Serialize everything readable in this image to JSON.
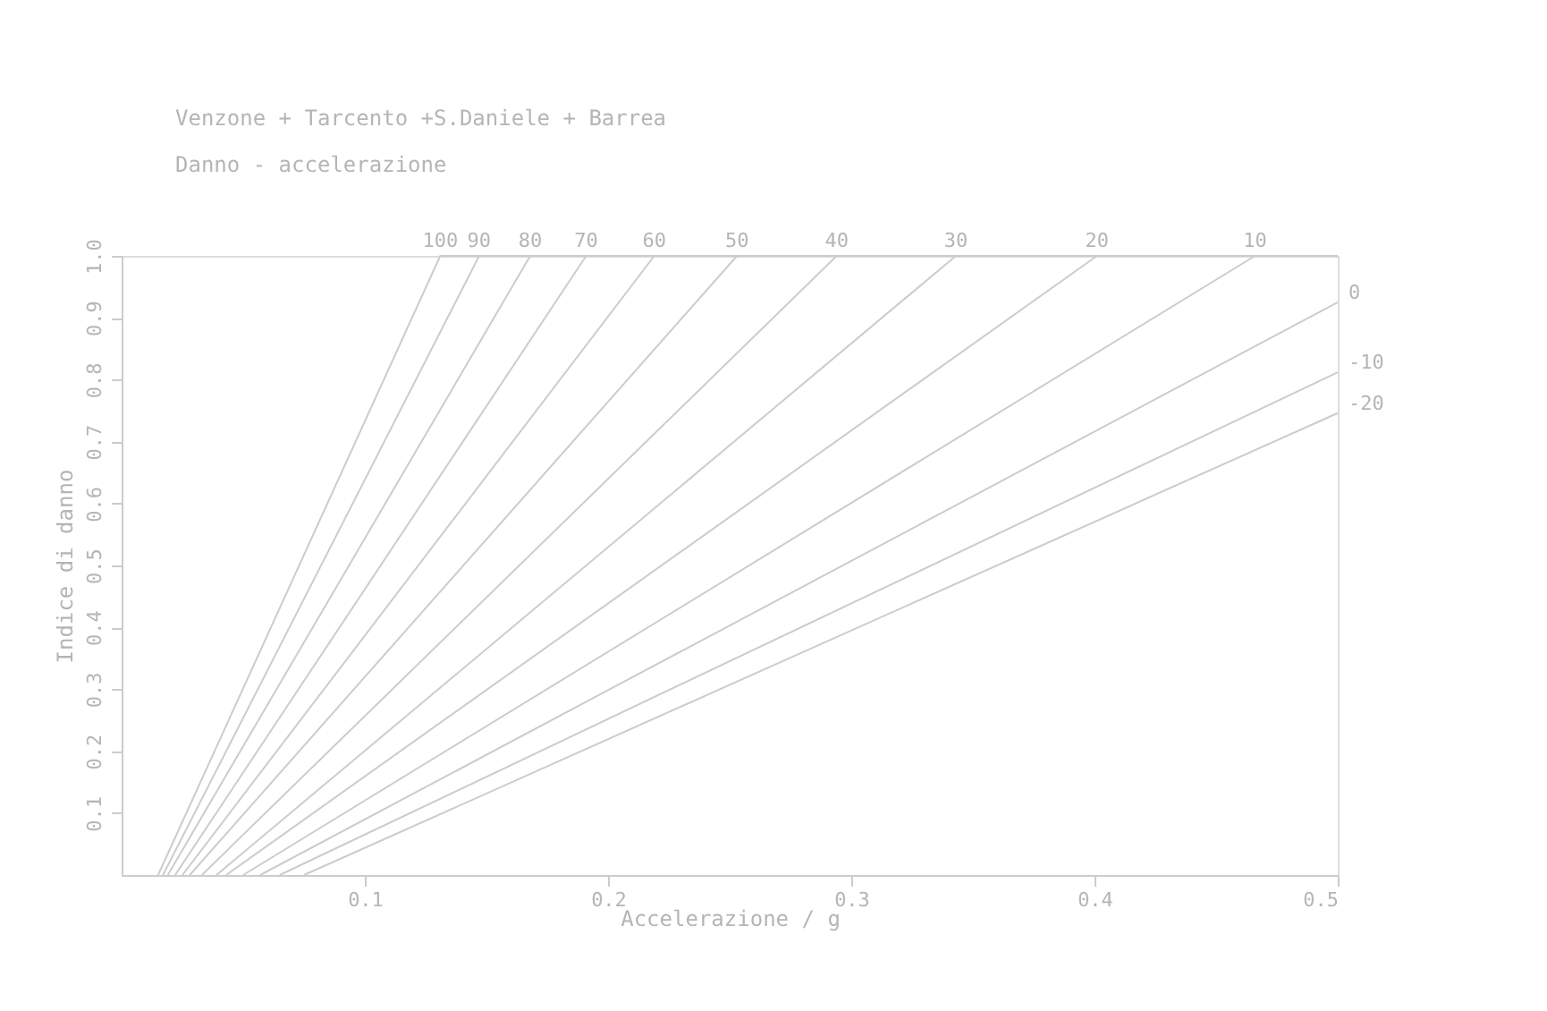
{
  "chart_data": {
    "type": "line",
    "title": "Venzone + Tarcento +S.Daniele + Barrea",
    "subtitle": "Danno - accelerazione",
    "xlabel": "Accelerazione / g",
    "ylabel": "Indice di danno",
    "xlim": [
      0,
      0.5
    ],
    "ylim": [
      0,
      1
    ],
    "xticks": [
      0.1,
      0.2,
      0.3,
      0.4,
      0.5
    ],
    "yticks": [
      0.1,
      0.2,
      0.3,
      0.4,
      0.5,
      0.6,
      0.7,
      0.8,
      0.9,
      {
        "value": 1,
        "label": "1.0"
      }
    ],
    "grid": false,
    "legend": false,
    "marker": "none",
    "line_style": "solid",
    "series": [
      {
        "name": "100",
        "color": "#cccccc",
        "x": [
          0.015,
          0.131,
          0.5
        ],
        "values": [
          0,
          1,
          1
        ]
      },
      {
        "name": "90",
        "color": "#cccccc",
        "x": [
          0.017,
          0.147
        ],
        "values": [
          0,
          1
        ]
      },
      {
        "name": "80",
        "color": "#cccccc",
        "x": [
          0.019,
          0.168
        ],
        "values": [
          0,
          1
        ]
      },
      {
        "name": "70",
        "color": "#cccccc",
        "x": [
          0.022,
          0.191
        ],
        "values": [
          0,
          1
        ]
      },
      {
        "name": "60",
        "color": "#cccccc",
        "x": [
          0.025,
          0.219
        ],
        "values": [
          0,
          1
        ]
      },
      {
        "name": "50",
        "color": "#cccccc",
        "x": [
          0.028,
          0.253
        ],
        "values": [
          0,
          1
        ]
      },
      {
        "name": "40",
        "color": "#cccccc",
        "x": [
          0.033,
          0.294
        ],
        "values": [
          0,
          1
        ]
      },
      {
        "name": "30",
        "color": "#cccccc",
        "x": [
          0.039,
          0.343
        ],
        "values": [
          0,
          1
        ]
      },
      {
        "name": "20",
        "color": "#cccccc",
        "x": [
          0.043,
          0.401
        ],
        "values": [
          0,
          1
        ]
      },
      {
        "name": "10",
        "color": "#cccccc",
        "x": [
          0.05,
          0.466
        ],
        "values": [
          0,
          1
        ]
      },
      {
        "name": "0",
        "color": "#cccccc",
        "x": [
          0.057,
          0.5
        ],
        "values": [
          0,
          0.925
        ]
      },
      {
        "name": "-10",
        "color": "#cccccc",
        "x": [
          0.065,
          0.5
        ],
        "values": [
          0,
          0.812
        ]
      },
      {
        "name": "-20",
        "color": "#cccccc",
        "x": [
          0.075,
          0.5
        ],
        "values": [
          0,
          0.746
        ]
      }
    ]
  }
}
